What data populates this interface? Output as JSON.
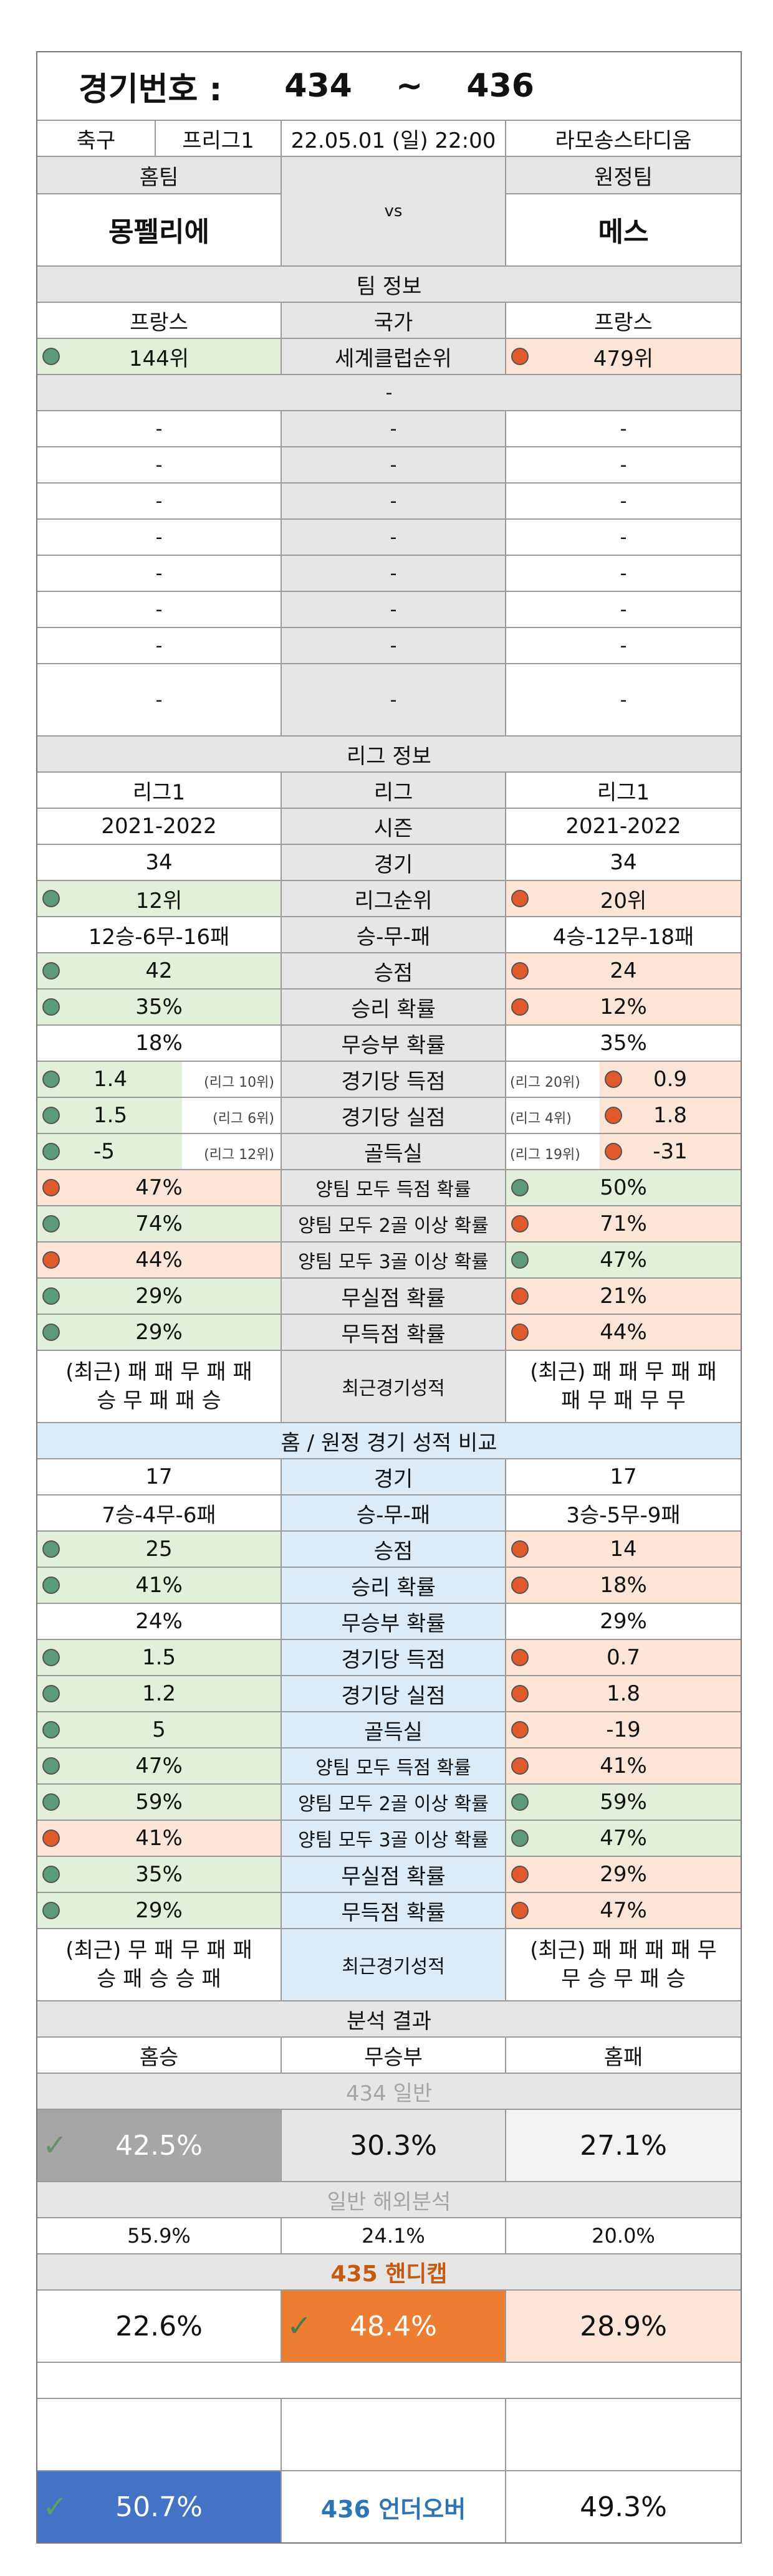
{
  "header": {
    "label": "경기번호 :",
    "from": "434",
    "sep": "~",
    "to": "436",
    "sport": "축구",
    "league": "프리그1",
    "datetime": "22.05.01 (일) 22:00",
    "stadium": "라모송스타디움"
  },
  "teams": {
    "home_label": "홈팀",
    "away_label": "원정팀",
    "vs": "vs",
    "home": "몽펠리에",
    "away": "메스"
  },
  "team_info": {
    "title": "팀 정보",
    "country_label": "국가",
    "home_country": "프랑스",
    "away_country": "프랑스",
    "rank_label": "세계클럽순위",
    "home_rank": "144위",
    "away_rank": "479위",
    "dash": "-"
  },
  "league_info": {
    "title": "리그 정보",
    "league_label": "리그",
    "home_league": "리그1",
    "away_league": "리그1",
    "season_label": "시즌",
    "season": "2021-2022",
    "games_label": "경기",
    "home_games": "34",
    "away_games": "34",
    "pos_label": "리그순위",
    "home_pos": "12위",
    "away_pos": "20위",
    "wdl_label": "승-무-패",
    "home_wdl": "12승-6무-16패",
    "away_wdl": "4승-12무-18패",
    "points_label": "승점",
    "home_points": "42",
    "away_points": "24",
    "winp_label": "승리 확률",
    "home_winp": "35%",
    "away_winp": "12%",
    "drawp_label": "무승부 확률",
    "home_drawp": "18%",
    "away_drawp": "35%",
    "gf_label": "경기당 득점",
    "home_gf": "1.4",
    "home_gf_rank": "(리그 10위)",
    "away_gf": "0.9",
    "away_gf_rank": "(리그 20위)",
    "ga_label": "경기당 실점",
    "home_ga": "1.5",
    "home_ga_rank": "(리그 6위)",
    "away_ga": "1.8",
    "away_ga_rank": "(리그 4위)",
    "gd_label": "골득실",
    "home_gd": "-5",
    "home_gd_rank": "(리그 12위)",
    "away_gd": "-31",
    "away_gd_rank": "(리그 19위)",
    "btts_label": "양팀 모두 득점 확률",
    "home_btts": "47%",
    "away_btts": "50%",
    "btts2_label": "양팀 모두 2골 이상 확률",
    "home_btts2": "74%",
    "away_btts2": "71%",
    "btts3_label": "양팀 모두 3골 이상 확률",
    "home_btts3": "44%",
    "away_btts3": "47%",
    "cs_label": "무실점 확률",
    "home_cs": "29%",
    "away_cs": "21%",
    "fts_label": "무득점 확률",
    "home_fts": "29%",
    "away_fts": "44%",
    "recent_label": "최근경기성적",
    "home_recent_1": "(최근) 패 패 무 패 패",
    "home_recent_2": "승 무 패 패 승",
    "away_recent_1": "(최근) 패 패 무 패 패",
    "away_recent_2": "패 무 패 무 무"
  },
  "ha_info": {
    "title": "홈 / 원정 경기 성적 비교",
    "home_games": "17",
    "away_games": "17",
    "home_wdl": "7승-4무-6패",
    "away_wdl": "3승-5무-9패",
    "home_points": "25",
    "away_points": "14",
    "home_winp": "41%",
    "away_winp": "18%",
    "home_drawp": "24%",
    "away_drawp": "29%",
    "home_gf": "1.5",
    "away_gf": "0.7",
    "home_ga": "1.2",
    "away_ga": "1.8",
    "home_gd": "5",
    "away_gd": "-19",
    "home_btts": "47%",
    "away_btts": "41%",
    "home_btts2": "59%",
    "away_btts2": "59%",
    "home_btts3": "41%",
    "away_btts3": "47%",
    "home_cs": "35%",
    "away_cs": "29%",
    "home_fts": "29%",
    "away_fts": "47%",
    "home_recent_1": "(최근) 무 패 무 패 패",
    "home_recent_2": "승 패 승 승 패",
    "away_recent_1": "(최근) 패 패 패 패 무",
    "away_recent_2": "무 승 무 패 승"
  },
  "analysis": {
    "title": "분석 결과",
    "home_win": "홈승",
    "draw": "무승부",
    "home_loss": "홈패",
    "general_title": "434 일반",
    "general_home": "42.5%",
    "general_draw": "30.3%",
    "general_away": "27.1%",
    "overseas_title": "일반 해외분석",
    "overseas_home": "55.9%",
    "overseas_draw": "24.1%",
    "overseas_away": "20.0%",
    "handicap_title": "435 핸디캡",
    "handicap_home": "22.6%",
    "handicap_draw": "48.4%",
    "handicap_away": "28.9%",
    "uo_title": "436 언더오버",
    "uo_under": "50.7%",
    "uo_over": "49.3%",
    "check": "✓"
  },
  "colors": {
    "green_cell": "#e2efda",
    "orange_cell": "#fce4d6",
    "blue_cell": "#ddebf7",
    "gray_cell": "#e7e6e6",
    "green_dot": "#5b9b7c",
    "red_dot": "#e05a2b",
    "general_pick": "#a6a6a6",
    "handicap_pick": "#ed7d31",
    "uo_pick": "#4472c4",
    "uo_title": "#2e75b6",
    "handicap_title": "#c55a11"
  }
}
